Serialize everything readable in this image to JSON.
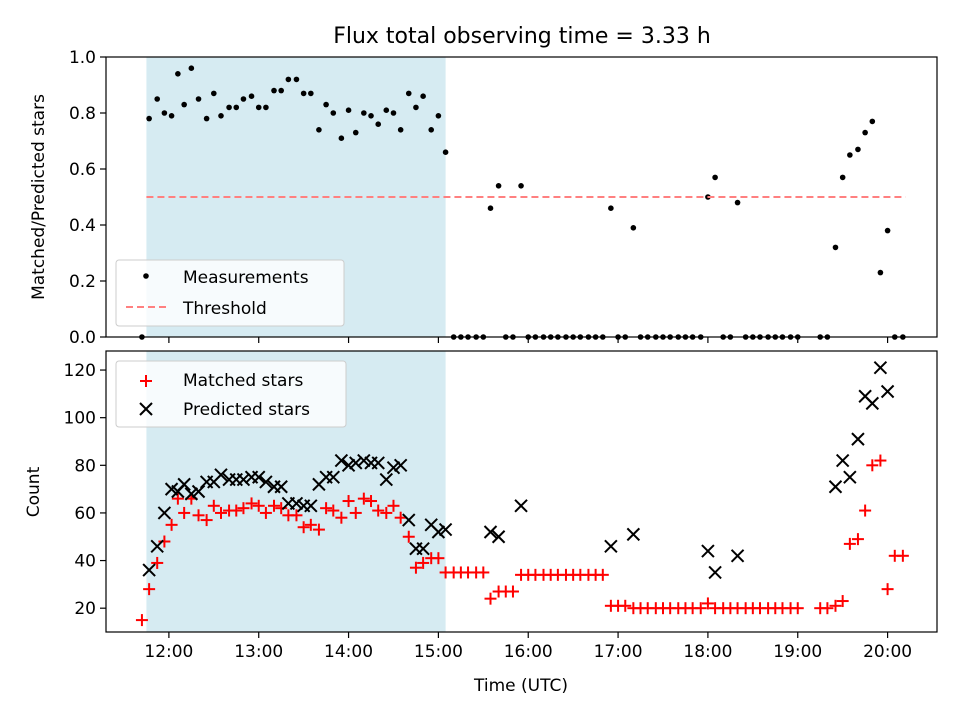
{
  "title": "Flux total observing time = 3.33 h",
  "colors": {
    "shade": "#add8e6",
    "threshold": "#ff8080",
    "matched": "#ff0000",
    "predicted": "#000000",
    "measurement": "#000000"
  },
  "chart_data": [
    {
      "type": "scatter",
      "title": "Flux total observing time = 3.33 h",
      "ylabel": "Matched/Predicted stars",
      "xlabel": "",
      "xlim": [
        11.3,
        20.55
      ],
      "ylim": [
        0,
        1.0
      ],
      "x_ticks": [
        "12:00",
        "13:00",
        "14:00",
        "15:00",
        "16:00",
        "17:00",
        "18:00",
        "19:00",
        "20:00"
      ],
      "y_ticks": [
        "0.0",
        "0.2",
        "0.4",
        "0.6",
        "0.8",
        "1.0"
      ],
      "shaded_interval": {
        "x": [
          11.75,
          15.08
        ],
        "color": "#add8e6"
      },
      "grid": false,
      "legend": {
        "position": "lower-left",
        "entries": [
          "Measurements",
          "Threshold"
        ]
      },
      "series": [
        {
          "name": "Measurements",
          "marker": "dot",
          "x": [
            11.7,
            11.78,
            11.87,
            11.95,
            12.03,
            12.1,
            12.17,
            12.25,
            12.33,
            12.42,
            12.5,
            12.58,
            12.67,
            12.75,
            12.83,
            12.92,
            13.0,
            13.08,
            13.17,
            13.25,
            13.33,
            13.42,
            13.5,
            13.58,
            13.67,
            13.75,
            13.83,
            13.92,
            14.0,
            14.08,
            14.17,
            14.25,
            14.33,
            14.42,
            14.5,
            14.58,
            14.67,
            14.75,
            14.83,
            14.92,
            15.0,
            15.08,
            15.17,
            15.25,
            15.33,
            15.42,
            15.5,
            15.58,
            15.67,
            15.75,
            15.83,
            15.92,
            16.0,
            16.08,
            16.17,
            16.25,
            16.33,
            16.42,
            16.5,
            16.58,
            16.67,
            16.75,
            16.83,
            16.92,
            17.0,
            17.08,
            17.17,
            17.25,
            17.33,
            17.42,
            17.5,
            17.58,
            17.67,
            17.75,
            17.83,
            17.92,
            18.0,
            18.08,
            18.17,
            18.25,
            18.33,
            18.42,
            18.5,
            18.58,
            18.67,
            18.75,
            18.83,
            18.92,
            19.0,
            19.25,
            19.33,
            19.42,
            19.5,
            19.58,
            19.67,
            19.75,
            19.83,
            19.92,
            20.0,
            20.08,
            20.17
          ],
          "values": [
            0.0,
            0.78,
            0.85,
            0.8,
            0.79,
            0.94,
            0.83,
            0.96,
            0.85,
            0.78,
            0.87,
            0.79,
            0.82,
            0.82,
            0.85,
            0.86,
            0.82,
            0.82,
            0.88,
            0.88,
            0.92,
            0.92,
            0.87,
            0.87,
            0.74,
            0.83,
            0.8,
            0.71,
            0.81,
            0.73,
            0.8,
            0.79,
            0.76,
            0.81,
            0.8,
            0.74,
            0.87,
            0.82,
            0.86,
            0.74,
            0.79,
            0.66,
            0.0,
            0.0,
            0.0,
            0.0,
            0.0,
            0.46,
            0.54,
            0.0,
            0.0,
            0.54,
            0.0,
            0.0,
            0.0,
            0.0,
            0.0,
            0.0,
            0.0,
            0.0,
            0.0,
            0.0,
            0.0,
            0.46,
            0.0,
            0.0,
            0.39,
            0.0,
            0.0,
            0.0,
            0.0,
            0.0,
            0.0,
            0.0,
            0.0,
            0.0,
            0.5,
            0.57,
            0.0,
            0.0,
            0.48,
            0.0,
            0.0,
            0.0,
            0.0,
            0.0,
            0.0,
            0.0,
            0.0,
            0.0,
            0.0,
            0.32,
            0.57,
            0.65,
            0.67,
            0.73,
            0.77,
            0.23,
            0.38,
            0.0,
            0.0
          ]
        },
        {
          "name": "Threshold",
          "style": "dashed-line",
          "x": [
            11.75,
            20.2
          ],
          "values": [
            0.5,
            0.5
          ]
        }
      ]
    },
    {
      "type": "scatter",
      "ylabel": "Count",
      "xlabel": "Time (UTC)",
      "xlim": [
        11.3,
        20.55
      ],
      "ylim": [
        10,
        128
      ],
      "x_ticks": [
        "12:00",
        "13:00",
        "14:00",
        "15:00",
        "16:00",
        "17:00",
        "18:00",
        "19:00",
        "20:00"
      ],
      "y_ticks": [
        "20",
        "40",
        "60",
        "80",
        "100",
        "120"
      ],
      "shaded_interval": {
        "x": [
          11.75,
          15.08
        ],
        "color": "#add8e6"
      },
      "grid": false,
      "legend": {
        "position": "top-left",
        "entries": [
          "Matched stars",
          "Predicted stars"
        ]
      },
      "series": [
        {
          "name": "Matched stars",
          "marker": "plus",
          "x": [
            11.7,
            11.78,
            11.87,
            11.95,
            12.03,
            12.1,
            12.17,
            12.25,
            12.33,
            12.42,
            12.5,
            12.58,
            12.67,
            12.75,
            12.83,
            12.92,
            13.0,
            13.08,
            13.17,
            13.25,
            13.33,
            13.42,
            13.5,
            13.58,
            13.67,
            13.75,
            13.83,
            13.92,
            14.0,
            14.08,
            14.17,
            14.25,
            14.33,
            14.42,
            14.5,
            14.58,
            14.67,
            14.75,
            14.83,
            14.92,
            15.0,
            15.08,
            15.17,
            15.25,
            15.33,
            15.42,
            15.5,
            15.58,
            15.67,
            15.75,
            15.83,
            15.92,
            16.0,
            16.08,
            16.17,
            16.25,
            16.33,
            16.42,
            16.5,
            16.58,
            16.67,
            16.75,
            16.83,
            16.92,
            17.0,
            17.08,
            17.17,
            17.25,
            17.33,
            17.42,
            17.5,
            17.58,
            17.67,
            17.75,
            17.83,
            17.92,
            18.0,
            18.08,
            18.17,
            18.25,
            18.33,
            18.42,
            18.5,
            18.58,
            18.67,
            18.75,
            18.83,
            18.92,
            19.0,
            19.25,
            19.33,
            19.42,
            19.5,
            19.58,
            19.67,
            19.75,
            19.83,
            19.92,
            20.0,
            20.08,
            20.17
          ],
          "values": [
            15,
            28,
            39,
            48,
            55,
            66,
            60,
            66,
            59,
            57,
            63,
            60,
            61,
            61,
            62,
            64,
            63,
            60,
            63,
            62,
            59,
            59,
            54,
            55,
            53,
            62,
            61,
            58,
            65,
            60,
            66,
            65,
            61,
            60,
            63,
            58,
            50,
            37,
            39,
            41,
            41,
            35,
            35,
            35,
            35,
            35,
            35,
            24,
            27,
            27,
            27,
            34,
            34,
            34,
            34,
            34,
            34,
            34,
            34,
            34,
            34,
            34,
            34,
            21,
            21,
            21,
            20,
            20,
            20,
            20,
            20,
            20,
            20,
            20,
            20,
            20,
            22,
            20,
            20,
            20,
            20,
            20,
            20,
            20,
            20,
            20,
            20,
            20,
            20,
            20,
            20,
            21,
            23,
            47,
            49,
            61,
            80,
            82,
            28,
            42,
            42
          ]
        },
        {
          "name": "Predicted stars",
          "marker": "x",
          "x": [
            11.78,
            11.87,
            11.95,
            12.03,
            12.1,
            12.17,
            12.25,
            12.33,
            12.42,
            12.5,
            12.58,
            12.67,
            12.75,
            12.83,
            12.92,
            13.0,
            13.08,
            13.17,
            13.25,
            13.33,
            13.42,
            13.5,
            13.58,
            13.67,
            13.75,
            13.83,
            13.92,
            14.0,
            14.08,
            14.17,
            14.25,
            14.33,
            14.42,
            14.5,
            14.58,
            14.67,
            14.75,
            14.83,
            14.92,
            15.0,
            15.08,
            15.58,
            15.67,
            15.92,
            16.92,
            17.17,
            18.0,
            18.08,
            18.33,
            19.42,
            19.5,
            19.58,
            19.67,
            19.75,
            19.83,
            19.92,
            20.0
          ],
          "values": [
            36,
            46,
            60,
            70,
            69,
            72,
            68,
            69,
            73,
            73,
            76,
            74,
            74,
            74,
            75,
            75,
            73,
            71,
            71,
            64,
            64,
            63,
            63,
            72,
            75,
            75,
            82,
            80,
            81,
            82,
            81,
            81,
            74,
            79,
            80,
            57,
            45,
            45,
            55,
            52,
            53,
            52,
            50,
            63,
            46,
            51,
            44,
            35,
            42,
            71,
            82,
            75,
            91,
            109,
            106,
            121,
            111
          ]
        }
      ]
    }
  ]
}
